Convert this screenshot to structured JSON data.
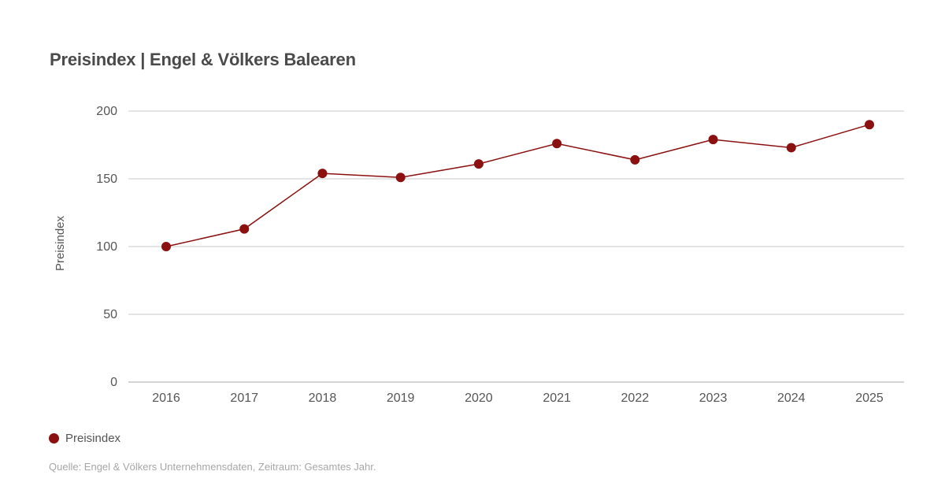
{
  "title": "Preisindex | Engel & Völkers Balearen",
  "source": "Quelle: Engel & Völkers Unternehmensdaten, Zeitraum: Gesamtes Jahr.",
  "legend": {
    "label": "Preisindex"
  },
  "colors": {
    "series": "#8b1010",
    "grid": "#c8c8c8",
    "axis_text": "#555555"
  },
  "chart_data": {
    "type": "line",
    "title": "Preisindex | Engel & Völkers Balearen",
    "ylabel": "Preisindex",
    "xlabel": "",
    "ylim": [
      0,
      200
    ],
    "yticks": [
      0,
      50,
      100,
      150,
      200
    ],
    "categories": [
      "2016",
      "2017",
      "2018",
      "2019",
      "2020",
      "2021",
      "2022",
      "2023",
      "2024",
      "2025"
    ],
    "series": [
      {
        "name": "Preisindex",
        "values": [
          100,
          113,
          154,
          151,
          161,
          176,
          164,
          179,
          173,
          190
        ]
      }
    ],
    "grid": true,
    "legend_position": "bottom-left"
  }
}
